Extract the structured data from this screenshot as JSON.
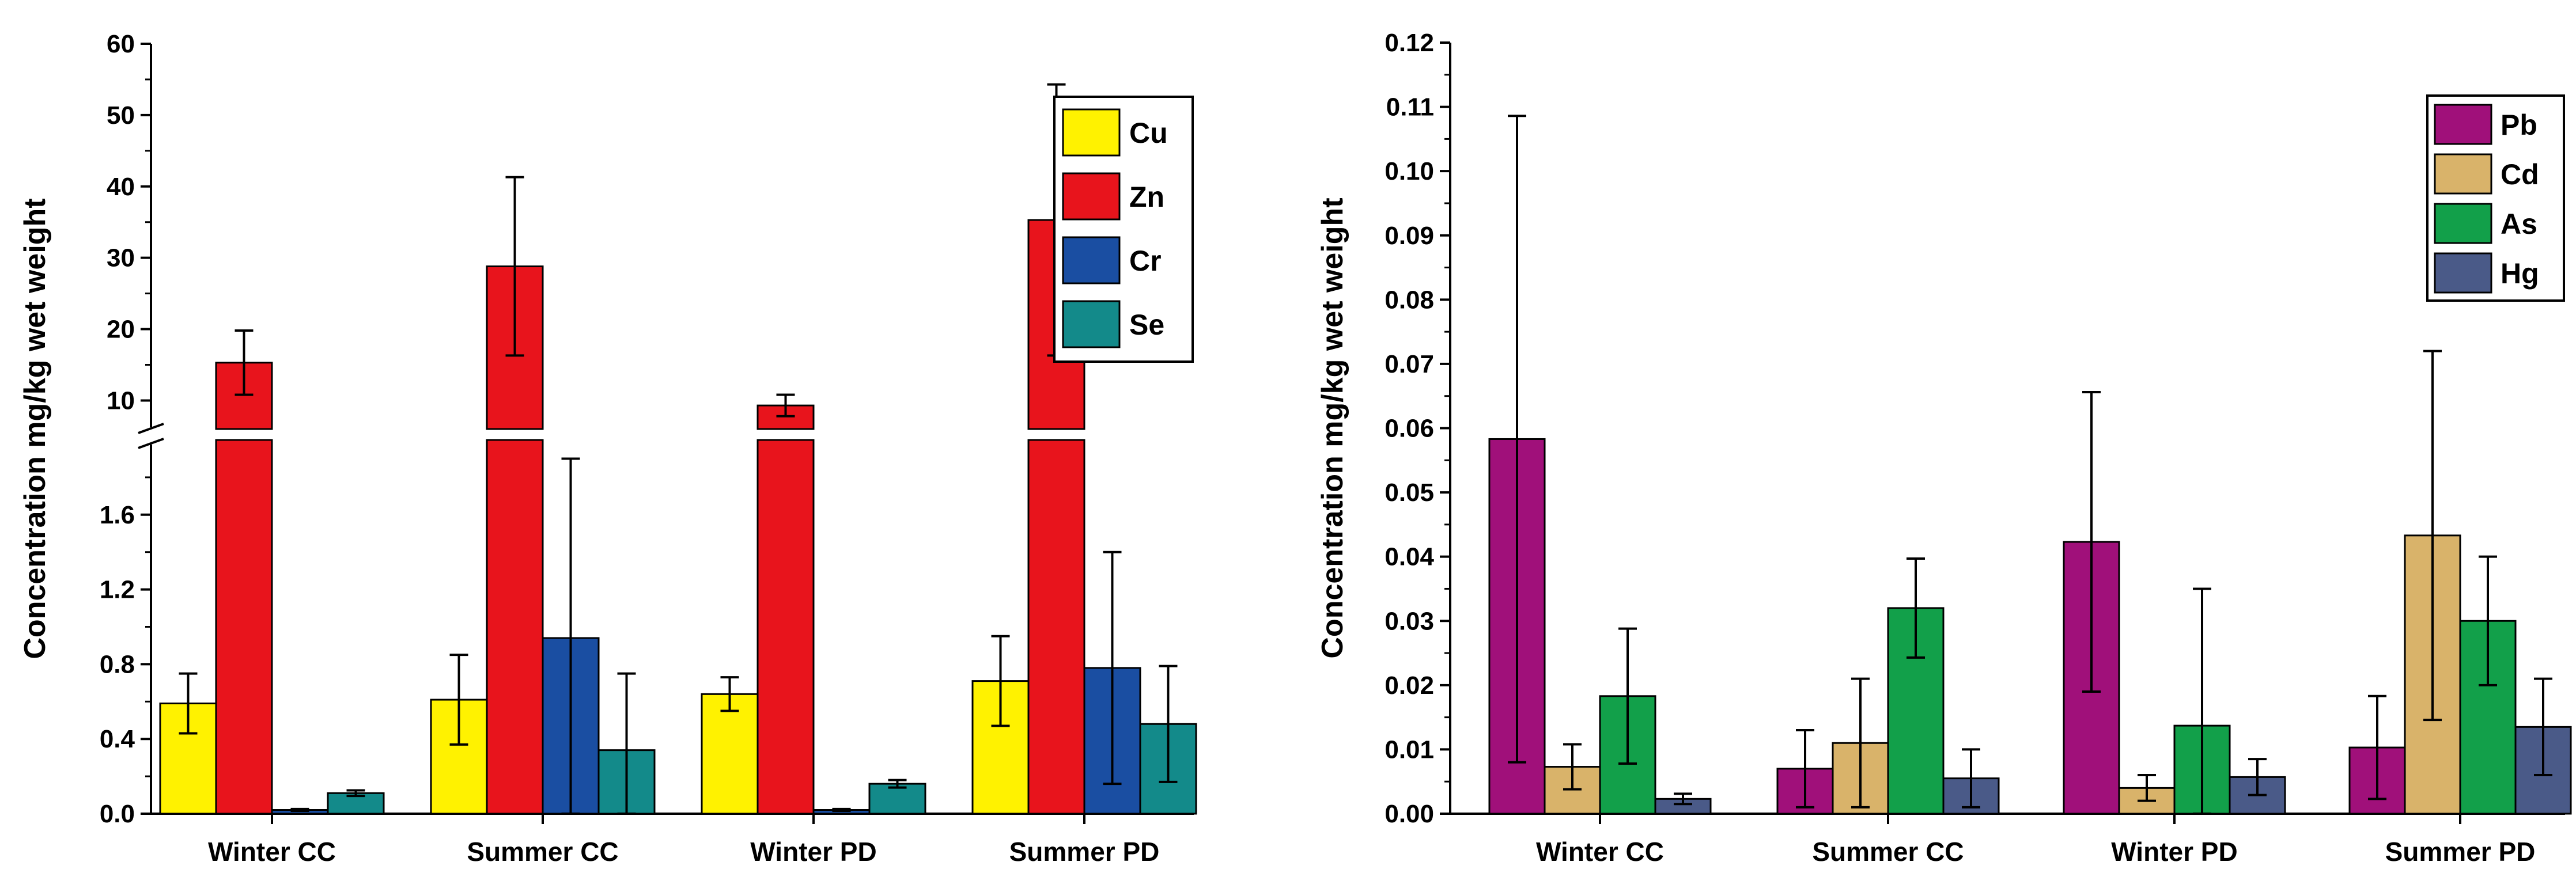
{
  "chart_data": [
    {
      "type": "bar",
      "ylabel": "Concentration mg/kg wet weight",
      "categories": [
        "Winter CC",
        "Summer CC",
        "Winter PD",
        "Summer PD"
      ],
      "y_axis_broken": true,
      "lower_range": [
        0,
        2.0
      ],
      "upper_range": [
        6,
        60
      ],
      "lower_ticks": [
        "0.0",
        "0.4",
        "0.8",
        "1.2",
        "1.6"
      ],
      "upper_ticks": [
        "10",
        "20",
        "30",
        "40",
        "50",
        "60"
      ],
      "lower_tick_values": [
        0,
        0.4,
        0.8,
        1.2,
        1.6
      ],
      "upper_tick_values": [
        10,
        20,
        30,
        40,
        50,
        60
      ],
      "legend_position": "top-right",
      "series": [
        {
          "name": "Cu",
          "color": "#FFF200",
          "values": [
            0.59,
            0.61,
            0.64,
            0.71
          ],
          "errors": [
            0.16,
            0.24,
            0.09,
            0.24
          ]
        },
        {
          "name": "Zn",
          "color": "#E8141C",
          "values": [
            15.3,
            28.8,
            9.3,
            35.3
          ],
          "errors": [
            4.5,
            12.5,
            1.5,
            19.0
          ]
        },
        {
          "name": "Cr",
          "color": "#1A4EA2",
          "values": [
            0.02,
            0.94,
            0.02,
            0.78
          ],
          "errors": [
            0.005,
            0.96,
            0.005,
            0.62
          ]
        },
        {
          "name": "Se",
          "color": "#138A8A",
          "values": [
            0.11,
            0.34,
            0.16,
            0.48
          ],
          "errors": [
            0.015,
            0.41,
            0.02,
            0.31
          ]
        }
      ]
    },
    {
      "type": "bar",
      "ylabel": "Concentration mg/kg wet weight",
      "categories": [
        "Winter CC",
        "Summer CC",
        "Winter PD",
        "Summer PD"
      ],
      "ylim": [
        0,
        0.12
      ],
      "yticks": [
        "0.00",
        "0.01",
        "0.02",
        "0.03",
        "0.04",
        "0.05",
        "0.06",
        "0.07",
        "0.08",
        "0.09",
        "0.10",
        "0.11",
        "0.12"
      ],
      "ytick_values": [
        0,
        0.01,
        0.02,
        0.03,
        0.04,
        0.05,
        0.06,
        0.07,
        0.08,
        0.09,
        0.1,
        0.11,
        0.12
      ],
      "legend_position": "top-right",
      "series": [
        {
          "name": "Pb",
          "color": "#A0107A",
          "values": [
            0.0583,
            0.007,
            0.0423,
            0.0103
          ],
          "errors": [
            0.0503,
            0.006,
            0.0233,
            0.008
          ]
        },
        {
          "name": "Cd",
          "color": "#D9B36A",
          "values": [
            0.0073,
            0.011,
            0.004,
            0.0433
          ],
          "errors": [
            0.0035,
            0.01,
            0.002,
            0.0287
          ]
        },
        {
          "name": "As",
          "color": "#12A04A",
          "values": [
            0.0183,
            0.032,
            0.0137,
            0.03
          ],
          "errors": [
            0.0105,
            0.0077,
            0.0213,
            0.01
          ]
        },
        {
          "name": "Hg",
          "color": "#4A5A88",
          "values": [
            0.0023,
            0.0055,
            0.0057,
            0.0135
          ],
          "errors": [
            0.0008,
            0.0045,
            0.0028,
            0.0075
          ]
        }
      ]
    }
  ]
}
